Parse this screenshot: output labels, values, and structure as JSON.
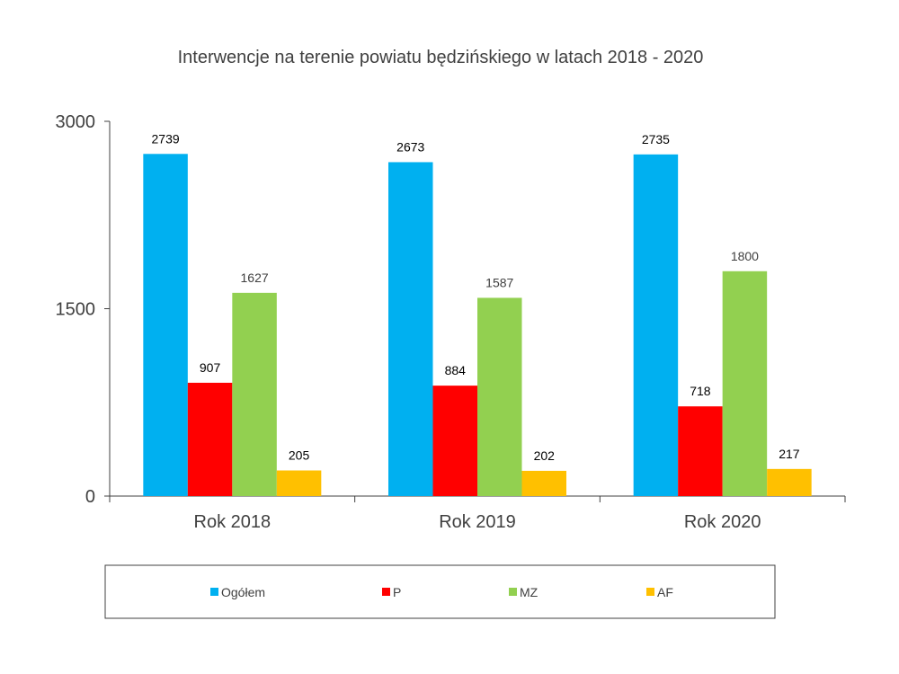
{
  "chart_data": {
    "type": "bar",
    "title": "Interwencje na terenie powiatu będzińskiego w latach 2018 - 2020",
    "xlabel": "",
    "ylabel": "",
    "ylim": [
      0,
      3000
    ],
    "yticks": [
      0,
      1500,
      3000
    ],
    "ytick_labels": [
      "0",
      "1500",
      "3000"
    ],
    "grid": false,
    "legend_position": "bottom",
    "categories": [
      "Rok 2018",
      "Rok 2019",
      "Rok 2020"
    ],
    "series": [
      {
        "name": "Ogółem",
        "color": "#00B0F0",
        "values": [
          2739,
          2673,
          2735
        ],
        "labels": [
          "2739",
          "2673",
          "2735"
        ]
      },
      {
        "name": "P",
        "color": "#FF0000",
        "values": [
          907,
          884,
          718
        ],
        "labels": [
          "907",
          "884",
          "718"
        ]
      },
      {
        "name": "MZ",
        "color": "#92D050",
        "values": [
          1627,
          1587,
          1800
        ],
        "labels": [
          "1627",
          "1587",
          "1800"
        ]
      },
      {
        "name": "AF",
        "color": "#FFC000",
        "values": [
          205,
          202,
          217
        ],
        "labels": [
          "205",
          "202",
          "217"
        ]
      }
    ]
  }
}
